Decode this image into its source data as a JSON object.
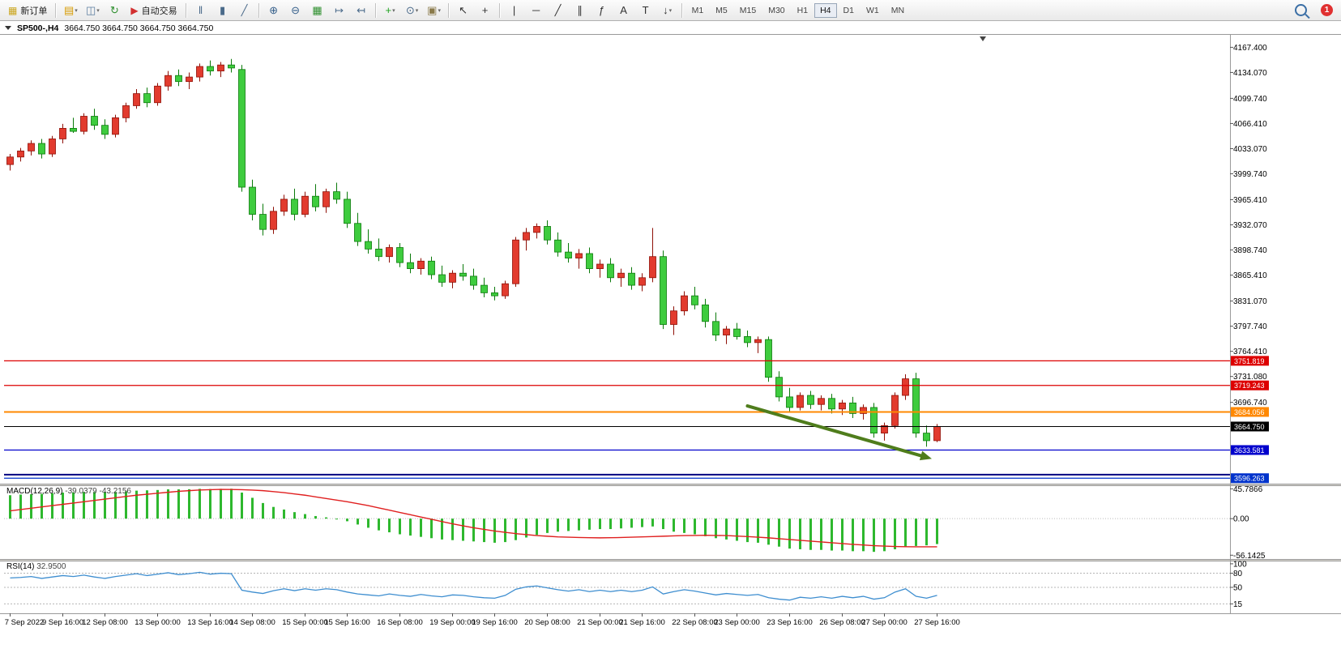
{
  "toolbar": {
    "dropdown_glyph": "▾",
    "items": [
      {
        "t": "btn",
        "name": "new-order-button",
        "glyph": "▦",
        "gc": "#caa51c",
        "label": "新订单"
      },
      {
        "t": "sep"
      },
      {
        "t": "icon",
        "name": "new-chart-icon",
        "glyph": "▤",
        "c": "#d79b00",
        "dd": true
      },
      {
        "t": "icon",
        "name": "profiles-icon",
        "glyph": "◫",
        "c": "#5b7da0",
        "dd": true
      },
      {
        "t": "icon",
        "name": "refresh-icon",
        "glyph": "↻",
        "c": "#2e8f2e"
      },
      {
        "t": "btn",
        "name": "auto-trading-button",
        "glyph": "▶",
        "gc": "#d22f2f",
        "label": "自动交易"
      },
      {
        "t": "sep"
      },
      {
        "t": "icon",
        "name": "bar-chart-icon",
        "glyph": "‖",
        "c": "#4a6a8a"
      },
      {
        "t": "icon",
        "name": "candlestick-chart-icon",
        "glyph": "▮",
        "c": "#4a6a8a"
      },
      {
        "t": "icon",
        "name": "line-chart-icon",
        "glyph": "╱",
        "c": "#4a6a8a"
      },
      {
        "t": "sep"
      },
      {
        "t": "icon",
        "name": "zoom-in-icon",
        "glyph": "⊕",
        "c": "#355f8a"
      },
      {
        "t": "icon",
        "name": "zoom-out-icon",
        "glyph": "⊖",
        "c": "#355f8a"
      },
      {
        "t": "icon",
        "name": "tile-windows-icon",
        "glyph": "▦",
        "c": "#2e8f2e"
      },
      {
        "t": "icon",
        "name": "auto-scroll-icon",
        "glyph": "↦",
        "c": "#4a6a8a"
      },
      {
        "t": "icon",
        "name": "chart-shift-icon",
        "glyph": "↤",
        "c": "#4a6a8a"
      },
      {
        "t": "sep"
      },
      {
        "t": "icon",
        "name": "indicators-icon",
        "glyph": "+",
        "c": "#1fa31f",
        "dd": true
      },
      {
        "t": "icon",
        "name": "periods-icon",
        "glyph": "⊙",
        "c": "#4a6a8a",
        "dd": true
      },
      {
        "t": "icon",
        "name": "templates-icon",
        "glyph": "▣",
        "c": "#8a7a4a",
        "dd": true
      },
      {
        "t": "sep"
      },
      {
        "t": "icon",
        "name": "cursor-icon",
        "glyph": "↖",
        "c": "#333333"
      },
      {
        "t": "icon",
        "name": "crosshair-icon",
        "glyph": "+",
        "c": "#333333"
      },
      {
        "t": "sep"
      },
      {
        "t": "icon",
        "name": "vertical-line-icon",
        "glyph": "|",
        "c": "#333333"
      },
      {
        "t": "icon",
        "name": "horizontal-line-icon",
        "glyph": "─",
        "c": "#333333"
      },
      {
        "t": "icon",
        "name": "trendline-icon",
        "glyph": "╱",
        "c": "#333333"
      },
      {
        "t": "icon",
        "name": "channel-icon",
        "glyph": "∥",
        "c": "#333333"
      },
      {
        "t": "icon",
        "name": "fibonacci-icon",
        "glyph": "ƒ",
        "c": "#333333"
      },
      {
        "t": "icon",
        "name": "text-icon",
        "glyph": "A",
        "c": "#333333"
      },
      {
        "t": "icon",
        "name": "label-icon",
        "glyph": "T",
        "c": "#333333"
      },
      {
        "t": "icon",
        "name": "arrows-icon",
        "glyph": "↓",
        "c": "#333333",
        "dd": true
      },
      {
        "t": "sep"
      },
      {
        "t": "tfs"
      },
      {
        "t": "spacer"
      },
      {
        "t": "mag",
        "name": "search-icon"
      },
      {
        "t": "badge",
        "name": "notification-badge",
        "label": "1"
      }
    ],
    "timeframes": [
      {
        "label": "M1"
      },
      {
        "label": "M5"
      },
      {
        "label": "M15"
      },
      {
        "label": "M30"
      },
      {
        "label": "H1"
      },
      {
        "label": "H4",
        "active": true
      },
      {
        "label": "D1"
      },
      {
        "label": "W1"
      },
      {
        "label": "MN"
      }
    ],
    "notification_count": "1"
  },
  "chart_header": {
    "symbol_period": "SP500-,H4",
    "ohlc": "3664.750 3664.750 3664.750 3664.750"
  },
  "chart_data": {
    "type": "candlestick",
    "title": "SP500-,H4",
    "symbol": "SP500-",
    "period": "H4",
    "price_scale": {
      "max": 4185,
      "min": 3589
    },
    "y_axis_labels": [
      "4167.400",
      "4134.070",
      "4099.740",
      "4066.410",
      "4033.070",
      "3999.740",
      "3965.410",
      "3932.070",
      "3898.740",
      "3865.410",
      "3831.070",
      "3797.740",
      "3764.410",
      "3731.080",
      "3696.740"
    ],
    "x_labels": [
      "7 Sep 2022",
      "9 Sep 16:00",
      "12 Sep 08:00",
      "13 Sep 00:00",
      "13 Sep 16:00",
      "14 Sep 08:00",
      "15 Sep 00:00",
      "15 Sep 16:00",
      "16 Sep 08:00",
      "19 Sep 00:00",
      "19 Sep 16:00",
      "20 Sep 08:00",
      "21 Sep 00:00",
      "21 Sep 16:00",
      "22 Sep 08:00",
      "23 Sep 00:00",
      "23 Sep 16:00",
      "26 Sep 08:00",
      "27 Sep 00:00",
      "27 Sep 16:00"
    ],
    "price_lines": [
      {
        "price": 3751.819,
        "label": "3751.819",
        "color": "#dd0000",
        "width": 1.3,
        "badge": true
      },
      {
        "price": 3719.243,
        "label": "3719.243",
        "color": "#dd0000",
        "width": 1.3,
        "badge": true
      },
      {
        "price": 3684.056,
        "label": "3684.056",
        "color": "#ff8800",
        "width": 2,
        "badge": true
      },
      {
        "price": 3664.75,
        "label": "3664.750",
        "color": "#000000",
        "width": 1,
        "badge": true
      },
      {
        "price": 3633.581,
        "label": "3633.581",
        "color": "#0000cc",
        "width": 1.3,
        "badge": true
      },
      {
        "price": 3601.0,
        "label": "",
        "color": "#000080",
        "width": 2,
        "badge": false
      },
      {
        "price": 3596.263,
        "label": "3596.263",
        "color": "#0033cc",
        "width": 1.3,
        "badge": true
      }
    ],
    "colors": {
      "up": "#e23b2e",
      "up_border": "#8f1007",
      "down": "#3ecc3e",
      "down_border": "#0b7a0b"
    },
    "candles": [
      [
        4012,
        4026,
        4004,
        4022
      ],
      [
        4022,
        4034,
        4016,
        4030
      ],
      [
        4030,
        4044,
        4024,
        4040
      ],
      [
        4040,
        4046,
        4020,
        4026
      ],
      [
        4026,
        4050,
        4022,
        4046
      ],
      [
        4046,
        4066,
        4040,
        4060
      ],
      [
        4060,
        4074,
        4054,
        4056
      ],
      [
        4056,
        4080,
        4052,
        4076
      ],
      [
        4076,
        4086,
        4058,
        4064
      ],
      [
        4064,
        4072,
        4046,
        4052
      ],
      [
        4052,
        4078,
        4048,
        4074
      ],
      [
        4074,
        4094,
        4068,
        4090
      ],
      [
        4090,
        4112,
        4086,
        4106
      ],
      [
        4106,
        4114,
        4088,
        4094
      ],
      [
        4094,
        4120,
        4090,
        4116
      ],
      [
        4116,
        4136,
        4110,
        4130
      ],
      [
        4130,
        4138,
        4116,
        4122
      ],
      [
        4122,
        4134,
        4112,
        4128
      ],
      [
        4128,
        4146,
        4122,
        4142
      ],
      [
        4142,
        4150,
        4130,
        4136
      ],
      [
        4136,
        4148,
        4128,
        4144
      ],
      [
        4144,
        4152,
        4134,
        4140
      ],
      [
        4138,
        4144,
        3976,
        3982
      ],
      [
        3982,
        3992,
        3938,
        3946
      ],
      [
        3946,
        3960,
        3918,
        3926
      ],
      [
        3926,
        3956,
        3920,
        3950
      ],
      [
        3950,
        3972,
        3944,
        3966
      ],
      [
        3966,
        3980,
        3938,
        3946
      ],
      [
        3946,
        3976,
        3942,
        3970
      ],
      [
        3970,
        3986,
        3950,
        3956
      ],
      [
        3956,
        3980,
        3948,
        3976
      ],
      [
        3976,
        3988,
        3960,
        3966
      ],
      [
        3966,
        3976,
        3928,
        3934
      ],
      [
        3934,
        3948,
        3904,
        3910
      ],
      [
        3910,
        3926,
        3894,
        3900
      ],
      [
        3900,
        3914,
        3884,
        3890
      ],
      [
        3890,
        3906,
        3882,
        3902
      ],
      [
        3902,
        3908,
        3876,
        3882
      ],
      [
        3882,
        3894,
        3868,
        3874
      ],
      [
        3874,
        3888,
        3866,
        3884
      ],
      [
        3884,
        3890,
        3860,
        3866
      ],
      [
        3866,
        3878,
        3850,
        3856
      ],
      [
        3856,
        3872,
        3848,
        3868
      ],
      [
        3868,
        3880,
        3858,
        3864
      ],
      [
        3864,
        3874,
        3846,
        3852
      ],
      [
        3852,
        3862,
        3836,
        3842
      ],
      [
        3842,
        3850,
        3832,
        3838
      ],
      [
        3838,
        3858,
        3834,
        3854
      ],
      [
        3854,
        3916,
        3850,
        3912
      ],
      [
        3912,
        3928,
        3898,
        3922
      ],
      [
        3922,
        3934,
        3914,
        3930
      ],
      [
        3930,
        3938,
        3906,
        3912
      ],
      [
        3912,
        3922,
        3890,
        3896
      ],
      [
        3896,
        3908,
        3882,
        3888
      ],
      [
        3888,
        3900,
        3874,
        3894
      ],
      [
        3894,
        3902,
        3868,
        3874
      ],
      [
        3874,
        3886,
        3862,
        3880
      ],
      [
        3880,
        3888,
        3856,
        3862
      ],
      [
        3862,
        3874,
        3850,
        3868
      ],
      [
        3868,
        3876,
        3846,
        3852
      ],
      [
        3852,
        3868,
        3844,
        3862
      ],
      [
        3862,
        3928,
        3856,
        3890
      ],
      [
        3890,
        3898,
        3794,
        3800
      ],
      [
        3800,
        3824,
        3786,
        3818
      ],
      [
        3818,
        3844,
        3812,
        3838
      ],
      [
        3838,
        3850,
        3820,
        3826
      ],
      [
        3826,
        3834,
        3796,
        3804
      ],
      [
        3804,
        3816,
        3778,
        3786
      ],
      [
        3786,
        3798,
        3774,
        3794
      ],
      [
        3794,
        3802,
        3780,
        3784
      ],
      [
        3784,
        3792,
        3770,
        3776
      ],
      [
        3776,
        3784,
        3762,
        3780
      ],
      [
        3780,
        3784,
        3724,
        3730
      ],
      [
        3730,
        3738,
        3698,
        3704
      ],
      [
        3704,
        3716,
        3684,
        3690
      ],
      [
        3690,
        3710,
        3686,
        3706
      ],
      [
        3706,
        3712,
        3688,
        3694
      ],
      [
        3694,
        3706,
        3686,
        3702
      ],
      [
        3702,
        3708,
        3682,
        3688
      ],
      [
        3688,
        3700,
        3680,
        3696
      ],
      [
        3696,
        3704,
        3676,
        3682
      ],
      [
        3682,
        3694,
        3674,
        3690
      ],
      [
        3690,
        3696,
        3650,
        3656
      ],
      [
        3656,
        3670,
        3646,
        3666
      ],
      [
        3666,
        3710,
        3662,
        3706
      ],
      [
        3706,
        3734,
        3700,
        3728
      ],
      [
        3728,
        3736,
        3650,
        3656
      ],
      [
        3656,
        3666,
        3638,
        3646
      ],
      [
        3646,
        3668,
        3644,
        3664.75
      ]
    ],
    "annotations": [
      {
        "type": "arrow",
        "from": {
          "index": 70,
          "price": 3692
        },
        "to": {
          "index": 87.5,
          "price": 3622
        },
        "color": "#4f7d1c"
      }
    ]
  },
  "macd": {
    "title": "MACD(12,26,9)",
    "values": "-39.0379 -43.2156",
    "axis_labels": [
      "45.7866",
      "0.00",
      "-56.1425"
    ],
    "scale": {
      "max": 50,
      "min": -62
    },
    "colors": {
      "histogram": "#2eb82e",
      "signal": "#e02020"
    },
    "histogram": [
      36,
      37,
      37.5,
      38,
      39,
      40,
      40.5,
      41,
      41,
      40.5,
      41,
      42,
      43,
      43.5,
      44,
      45,
      45,
      45.2,
      45.8,
      45.5,
      45.8,
      46,
      40,
      32,
      24,
      18,
      14,
      10,
      7,
      4,
      2,
      0,
      -4,
      -9,
      -14,
      -18,
      -21,
      -24,
      -26,
      -28,
      -30,
      -32,
      -33,
      -34,
      -35,
      -36,
      -37,
      -36,
      -33,
      -29,
      -25,
      -22,
      -20,
      -19,
      -18,
      -17,
      -16,
      -16,
      -15,
      -14,
      -13,
      -12,
      -16,
      -20,
      -22,
      -24,
      -27,
      -30,
      -32,
      -34,
      -36,
      -37,
      -40,
      -43,
      -46,
      -47,
      -48,
      -48,
      -49,
      -49,
      -50,
      -50,
      -51,
      -50,
      -47,
      -43,
      -42,
      -41,
      -39.0379
    ],
    "signal": [
      12,
      14,
      16,
      18,
      20,
      22,
      24,
      26,
      28,
      30,
      32,
      34,
      36,
      37.5,
      39,
      40.5,
      42,
      43,
      44,
      44.5,
      45,
      44.8,
      44.5,
      43.8,
      43,
      41.5,
      40,
      38,
      36,
      33.5,
      31,
      28.5,
      26,
      23,
      20,
      16.5,
      13,
      9.5,
      6,
      2.5,
      -1,
      -4.5,
      -8,
      -11,
      -14,
      -16.5,
      -19,
      -21,
      -23,
      -24.5,
      -26,
      -27,
      -28,
      -28.5,
      -29,
      -29.3,
      -29.5,
      -29.3,
      -29,
      -28.5,
      -28,
      -27.5,
      -27,
      -26.5,
      -26,
      -25.8,
      -25.5,
      -25.8,
      -26,
      -26.8,
      -27.5,
      -28.5,
      -29.5,
      -30.8,
      -32,
      -33.3,
      -34.5,
      -35.8,
      -37,
      -38.3,
      -39.5,
      -40.5,
      -41.5,
      -42.2,
      -42.8,
      -43.1,
      -43.3,
      -43.3,
      -43.2156
    ]
  },
  "rsi": {
    "title": "RSI(14)",
    "value": "32.9500",
    "axis_labels": [
      "100",
      "80",
      "50",
      "15"
    ],
    "levels": [
      80,
      50,
      15
    ],
    "scale": {
      "max": 105,
      "min": -5
    },
    "color": "#3e8ed0",
    "values": [
      70,
      71,
      73,
      69,
      72,
      75,
      73,
      76,
      72,
      69,
      73,
      76,
      79,
      75,
      78,
      81,
      77,
      79,
      82,
      78,
      80,
      79,
      44,
      40,
      37,
      43,
      47,
      43,
      47,
      44,
      47,
      45,
      40,
      36,
      34,
      32,
      36,
      33,
      31,
      35,
      32,
      30,
      34,
      33,
      30,
      28,
      27,
      33,
      46,
      51,
      53,
      49,
      45,
      42,
      45,
      41,
      44,
      41,
      44,
      41,
      44,
      51,
      36,
      41,
      45,
      42,
      38,
      34,
      37,
      35,
      33,
      35,
      28,
      25,
      23,
      29,
      27,
      30,
      27,
      31,
      28,
      31,
      25,
      28,
      40,
      47,
      31,
      27,
      32.95
    ]
  }
}
